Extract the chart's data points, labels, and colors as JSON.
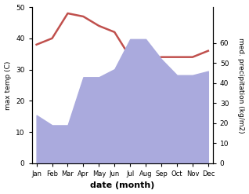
{
  "months": [
    "Jan",
    "Feb",
    "Mar",
    "Apr",
    "May",
    "Jun",
    "Jul",
    "Aug",
    "Sep",
    "Oct",
    "Nov",
    "Dec"
  ],
  "temp_line": [
    38,
    40,
    48,
    47,
    44,
    42,
    34,
    33,
    34,
    34,
    34,
    36
  ],
  "precipitation": [
    24,
    19,
    19,
    43,
    43,
    47,
    62,
    62,
    52,
    44,
    44,
    46
  ],
  "precip_ylim": [
    0,
    78
  ],
  "temp_ylim": [
    0,
    50
  ],
  "temp_color": "#c0504d",
  "precip_fill_color": "#aaaadd",
  "ylabel_left": "max temp (C)",
  "ylabel_right": "med. precipitation (kg/m2)",
  "xlabel": "date (month)",
  "background_color": "#ffffff"
}
